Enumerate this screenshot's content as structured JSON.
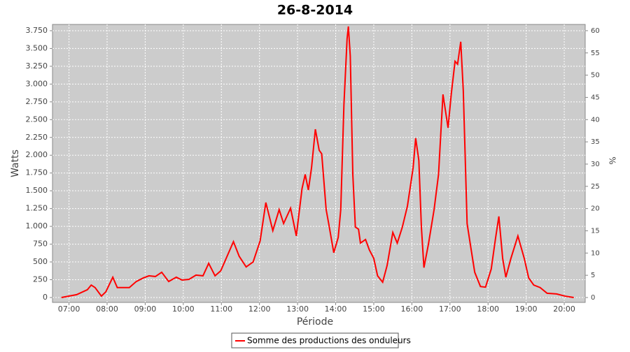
{
  "chart_data": {
    "type": "line",
    "title": "26-8-2014",
    "x_label": "Période",
    "y_label": "Watts",
    "y2_label": "%",
    "x": [
      "06:48",
      "07:12",
      "07:29",
      "07:35",
      "07:41",
      "07:51",
      "07:58",
      "08:09",
      "08:16",
      "08:24",
      "08:35",
      "08:46",
      "08:57",
      "09:06",
      "09:16",
      "09:26",
      "09:37",
      "09:49",
      "09:58",
      "10:09",
      "10:20",
      "10:31",
      "10:40",
      "10:50",
      "10:59",
      "11:09",
      "11:19",
      "11:28",
      "11:39",
      "11:50",
      "12:01",
      "12:10",
      "12:21",
      "12:31",
      "12:38",
      "12:49",
      "12:58",
      "13:07",
      "13:12",
      "13:17",
      "13:22",
      "13:28",
      "13:34",
      "13:38",
      "13:45",
      "13:49",
      "13:57",
      "14:04",
      "14:08",
      "14:13",
      "14:18",
      "14:20",
      "14:23",
      "14:27",
      "14:31",
      "14:36",
      "14:39",
      "14:47",
      "14:53",
      "15:00",
      "15:06",
      "15:14",
      "15:21",
      "15:30",
      "15:37",
      "15:45",
      "15:53",
      "16:02",
      "16:06",
      "16:11",
      "16:15",
      "16:19",
      "16:26",
      "16:35",
      "16:42",
      "16:49",
      "16:57",
      "17:02",
      "17:08",
      "17:12",
      "17:17",
      "17:21",
      "17:27",
      "17:33",
      "17:39",
      "17:48",
      "17:56",
      "18:05",
      "18:12",
      "18:17",
      "18:23",
      "18:28",
      "18:36",
      "18:47",
      "18:57",
      "19:04",
      "19:12",
      "19:22",
      "19:33",
      "19:48",
      "20:01",
      "20:15"
    ],
    "series": [
      {
        "name": "Somme des productions des onduleurs",
        "color": "#ff0000",
        "values": [
          0,
          40,
          110,
          175,
          140,
          20,
          80,
          285,
          140,
          140,
          140,
          225,
          275,
          305,
          295,
          355,
          225,
          285,
          245,
          255,
          315,
          305,
          480,
          305,
          375,
          580,
          785,
          580,
          430,
          500,
          795,
          1335,
          940,
          1235,
          1040,
          1255,
          865,
          1530,
          1730,
          1510,
          1825,
          2365,
          2070,
          2020,
          1235,
          1040,
          630,
          845,
          1235,
          2710,
          3640,
          3810,
          3395,
          1730,
          990,
          960,
          765,
          815,
          670,
          550,
          305,
          215,
          450,
          915,
          765,
          990,
          1285,
          1825,
          2240,
          1925,
          990,
          420,
          745,
          1235,
          1730,
          2855,
          2385,
          2855,
          3320,
          3280,
          3595,
          2905,
          1040,
          695,
          355,
          155,
          145,
          400,
          845,
          1140,
          550,
          285,
          550,
          865,
          550,
          275,
          175,
          140,
          60,
          50,
          20,
          0
        ]
      }
    ],
    "xlim": [
      "06:34",
      "20:33"
    ],
    "xticks": [
      "07:00",
      "08:00",
      "09:00",
      "10:00",
      "11:00",
      "12:00",
      "13:00",
      "14:00",
      "15:00",
      "16:00",
      "17:00",
      "18:00",
      "19:00",
      "20:00"
    ],
    "ylim": [
      -69,
      3838
    ],
    "yticks": [
      0,
      250,
      500,
      750,
      {
        "value": 1000,
        "label": "1.000"
      },
      {
        "value": 1250,
        "label": "1.250"
      },
      {
        "value": 1500,
        "label": "1.500"
      },
      {
        "value": 1750,
        "label": "1.750"
      },
      {
        "value": 2000,
        "label": "2.000"
      },
      {
        "value": 2250,
        "label": "2.250"
      },
      {
        "value": 2500,
        "label": "2.500"
      },
      {
        "value": 2750,
        "label": "2.750"
      },
      {
        "value": 3000,
        "label": "3.000"
      },
      {
        "value": 3250,
        "label": "3.250"
      },
      {
        "value": 3500,
        "label": "3.500"
      },
      {
        "value": 3750,
        "label": "3.750"
      }
    ],
    "y2lim": [
      -1.1,
      61.4
    ],
    "y2ticks": [
      0,
      5,
      10,
      15,
      20,
      25,
      30,
      35,
      40,
      45,
      50,
      55,
      60
    ],
    "grid": true
  }
}
